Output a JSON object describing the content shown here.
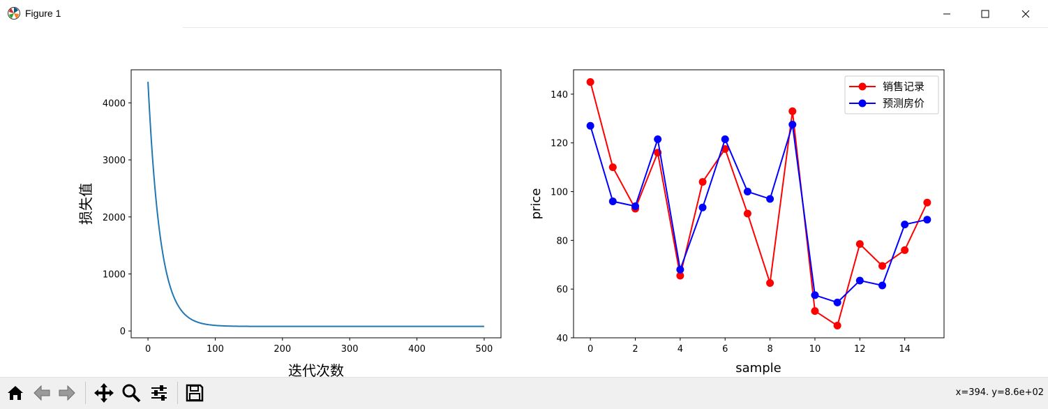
{
  "window": {
    "title": "Figure 1",
    "app_icon": "matplotlib-icon"
  },
  "window_controls": [
    "minimize-icon",
    "maximize-icon",
    "close-icon"
  ],
  "toolbar": {
    "buttons": [
      "home-icon",
      "back-icon",
      "forward-icon",
      "pan-icon",
      "zoom-icon",
      "configure-subplots-icon",
      "save-icon"
    ],
    "coords_text": "x=394. y=8.6e+02"
  },
  "chart_data": [
    {
      "type": "line",
      "title": "",
      "xlabel": "迭代次数",
      "ylabel": "损失值",
      "xlim": [
        -25,
        525
      ],
      "ylim": [
        -120,
        4580
      ],
      "xticks": [
        0,
        100,
        200,
        300,
        400,
        500
      ],
      "yticks": [
        0,
        1000,
        2000,
        3000,
        4000
      ],
      "grid": false,
      "color": "#1f77b4",
      "curve": {
        "start_x": 0,
        "end_x": 500,
        "start_y": 4370,
        "floor_y": 80,
        "decay_per_iteration": 0.055
      },
      "x": [
        0,
        5,
        10,
        15,
        20,
        30,
        40,
        50,
        60,
        80,
        100,
        150,
        200,
        300,
        400,
        500
      ],
      "values": [
        4370,
        3290,
        2500,
        1910,
        1470,
        860,
        510,
        310,
        200,
        112,
        97,
        80,
        80,
        80,
        80,
        80
      ]
    },
    {
      "type": "line",
      "title": "",
      "xlabel": "sample",
      "ylabel": "price",
      "xlim": [
        -0.75,
        15.75
      ],
      "ylim": [
        40,
        150
      ],
      "xticks": [
        0,
        2,
        4,
        6,
        8,
        10,
        12,
        14
      ],
      "yticks": [
        40,
        60,
        80,
        100,
        120,
        140
      ],
      "grid": false,
      "legend_position": "upper right",
      "x": [
        0,
        1,
        2,
        3,
        4,
        5,
        6,
        7,
        8,
        9,
        10,
        11,
        12,
        13,
        14,
        15
      ],
      "series": [
        {
          "name": "销售记录",
          "color": "#ff0000",
          "marker": "circle",
          "values": [
            145,
            110,
            93,
            116,
            65.5,
            104,
            117.5,
            91,
            62.5,
            133,
            51,
            45,
            78.5,
            69.5,
            76,
            95.5
          ]
        },
        {
          "name": "预测房价",
          "color": "#0000ff",
          "marker": "circle",
          "values": [
            127,
            96,
            94,
            121.5,
            68,
            93.5,
            121.5,
            100,
            97,
            127.5,
            57.5,
            54.5,
            63.5,
            61.5,
            86.5,
            88.5
          ]
        }
      ]
    }
  ]
}
